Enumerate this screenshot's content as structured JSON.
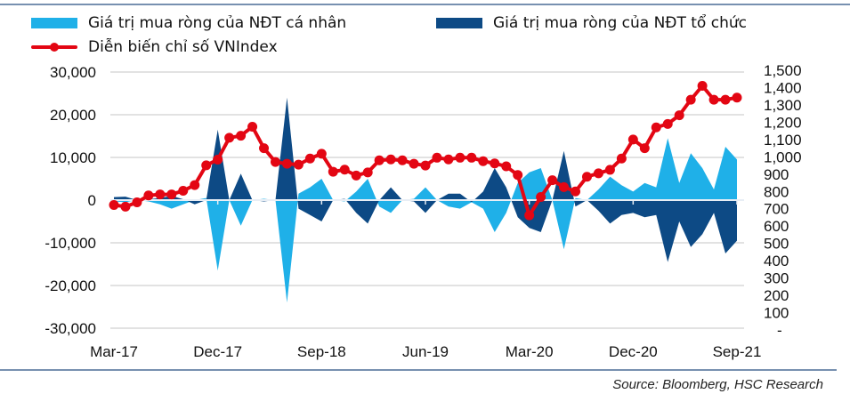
{
  "chart_data": {
    "type": "area+line",
    "legend": [
      {
        "label": "Giá trị mua ròng của NĐT cá nhân",
        "color": "#1fb0e8",
        "kind": "area"
      },
      {
        "label": "Giá trị mua ròng của NĐT tổ chức",
        "color": "#0d4a85",
        "kind": "area"
      },
      {
        "label": "Diễn biến chỉ số VNIndex",
        "color": "#e30613",
        "kind": "line-marker"
      }
    ],
    "legend_position": "top",
    "x": [
      "Mar-17",
      "Apr-17",
      "May-17",
      "Jun-17",
      "Jul-17",
      "Aug-17",
      "Sep-17",
      "Oct-17",
      "Nov-17",
      "Dec-17",
      "Jan-18",
      "Feb-18",
      "Mar-18",
      "Apr-18",
      "May-18",
      "Jun-18",
      "Jul-18",
      "Aug-18",
      "Sep-18",
      "Oct-18",
      "Nov-18",
      "Dec-18",
      "Jan-19",
      "Feb-19",
      "Mar-19",
      "Apr-19",
      "May-19",
      "Jun-19",
      "Jul-19",
      "Aug-19",
      "Sep-19",
      "Oct-19",
      "Nov-19",
      "Dec-19",
      "Jan-20",
      "Feb-20",
      "Mar-20",
      "Apr-20",
      "May-20",
      "Jun-20",
      "Jul-20",
      "Aug-20",
      "Sep-20",
      "Oct-20",
      "Nov-20",
      "Dec-20",
      "Jan-21",
      "Feb-21",
      "Mar-21",
      "Apr-21",
      "May-21",
      "Jun-21",
      "Jul-21",
      "Aug-21",
      "Sep-21"
    ],
    "x_tick_labels": [
      "Mar-17",
      "Dec-17",
      "Sep-18",
      "Jun-19",
      "Mar-20",
      "Dec-20",
      "Sep-21"
    ],
    "left_axis": {
      "ylim": [
        -30000,
        30000
      ],
      "ticks": [
        "-30,000",
        "-20,000",
        "-10,000",
        "0",
        "10,000",
        "20,000",
        "30,000"
      ]
    },
    "right_axis": {
      "ylim": [
        0,
        1500
      ],
      "ticks": [
        "-",
        "100",
        "200",
        "300",
        "400",
        "500",
        "600",
        "700",
        "800",
        "900",
        "1,000",
        "1,100",
        "1,200",
        "1,300",
        "1,400",
        "1,500"
      ]
    },
    "grid": true,
    "series": [
      {
        "name": "Giá trị mua ròng của NĐT cá nhân",
        "axis": "left",
        "values": [
          -300,
          -500,
          0,
          -300,
          -1000,
          -2000,
          -1000,
          0,
          500,
          -16500,
          0,
          -6000,
          0,
          300,
          0,
          -24000,
          1500,
          3000,
          5000,
          0,
          -300,
          2000,
          5000,
          -1500,
          -3000,
          0,
          300,
          3000,
          0,
          -1500,
          -2000,
          -500,
          -2000,
          -7500,
          -3000,
          4000,
          6500,
          7500,
          0,
          -11500,
          500,
          0,
          2500,
          5500,
          3500,
          2000,
          4000,
          3000,
          14500,
          4000,
          11000,
          7500,
          2500,
          12500,
          9500
        ]
      },
      {
        "name": "Giá trị mua ròng của NĐT tổ chức",
        "axis": "left",
        "values": [
          700,
          800,
          0,
          200,
          500,
          1000,
          200,
          -1000,
          0,
          16500,
          0,
          6200,
          0,
          -300,
          0,
          24000,
          -2000,
          -3500,
          -5000,
          0,
          300,
          -3000,
          -5500,
          0,
          3000,
          0,
          -300,
          -3000,
          0,
          1500,
          1500,
          -500,
          2000,
          7500,
          3000,
          -4000,
          -6500,
          -7500,
          0,
          11500,
          -1500,
          0,
          -2500,
          -5500,
          -3500,
          -3000,
          -4000,
          -3500,
          -14500,
          -5000,
          -11000,
          -8000,
          -3000,
          -12500,
          -9500
        ]
      },
      {
        "name": "Diễn biến chỉ số VNIndex",
        "axis": "right",
        "values": [
          722,
          712,
          737,
          777,
          783,
          783,
          804,
          837,
          951,
          984,
          1110,
          1122,
          1174,
          1050,
          970,
          960,
          955,
          990,
          1018,
          914,
          926,
          892,
          910,
          980,
          985,
          980,
          960,
          950,
          995,
          985,
          995,
          995,
          975,
          962,
          945,
          895,
          662,
          768,
          865,
          825,
          800,
          885,
          905,
          925,
          990,
          1100,
          1050,
          1170,
          1190,
          1240,
          1330,
          1410,
          1330,
          1330,
          1342
        ]
      }
    ]
  },
  "source": "Source: Bloomberg, HSC Research"
}
